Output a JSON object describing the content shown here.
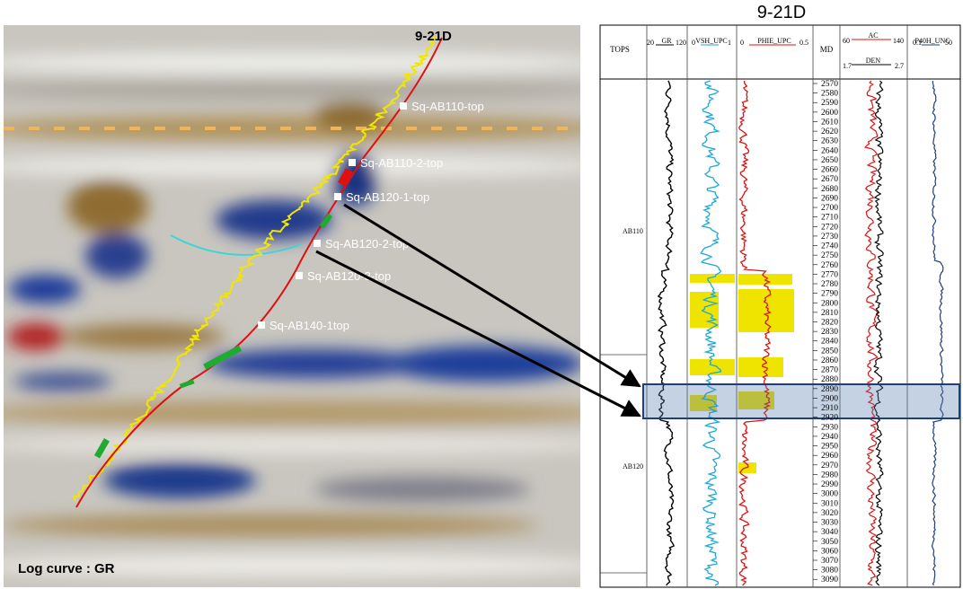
{
  "seismic": {
    "well_name": "9-21D",
    "markers": [
      "Sq-AB110-top",
      "Sq-AB110-2-top",
      "Sq-AB120-1-top",
      "Sq-AB120-2-top",
      "Sq-AB120-3-top",
      "Sq-AB140-1top"
    ],
    "caption": "Log curve : GR"
  },
  "log_panel": {
    "title": "9-21D",
    "tops_header": "TOPS",
    "md_header": "MD",
    "tracks": [
      {
        "name": "GR",
        "min": 20,
        "max": 120
      },
      {
        "name": "VSH_UPC",
        "min": 0,
        "max": 1
      },
      {
        "name": "PHIE_UPC",
        "min": 0,
        "max": 0.5
      },
      {
        "name": "AC",
        "min": 60,
        "max": 140
      },
      {
        "name": "DEN",
        "min": 1.7,
        "max": 2.7
      },
      {
        "name": "P40H_UNC",
        "min": 0.1,
        "max": 50
      }
    ],
    "tops": [
      "AB110",
      "AB120"
    ],
    "depths": [
      2570,
      2580,
      2590,
      2600,
      2610,
      2620,
      2630,
      2640,
      2650,
      2660,
      2670,
      2680,
      2690,
      2700,
      2710,
      2720,
      2730,
      2740,
      2750,
      2760,
      2770,
      2780,
      2790,
      2800,
      2810,
      2820,
      2830,
      2840,
      2850,
      2860,
      2870,
      2880,
      2890,
      2900,
      2910,
      2920,
      2930,
      2940,
      2950,
      2960,
      2970,
      2980,
      2990,
      3000,
      3010,
      3020,
      3030,
      3040,
      3050,
      3060,
      3070,
      3080,
      3090
    ]
  }
}
